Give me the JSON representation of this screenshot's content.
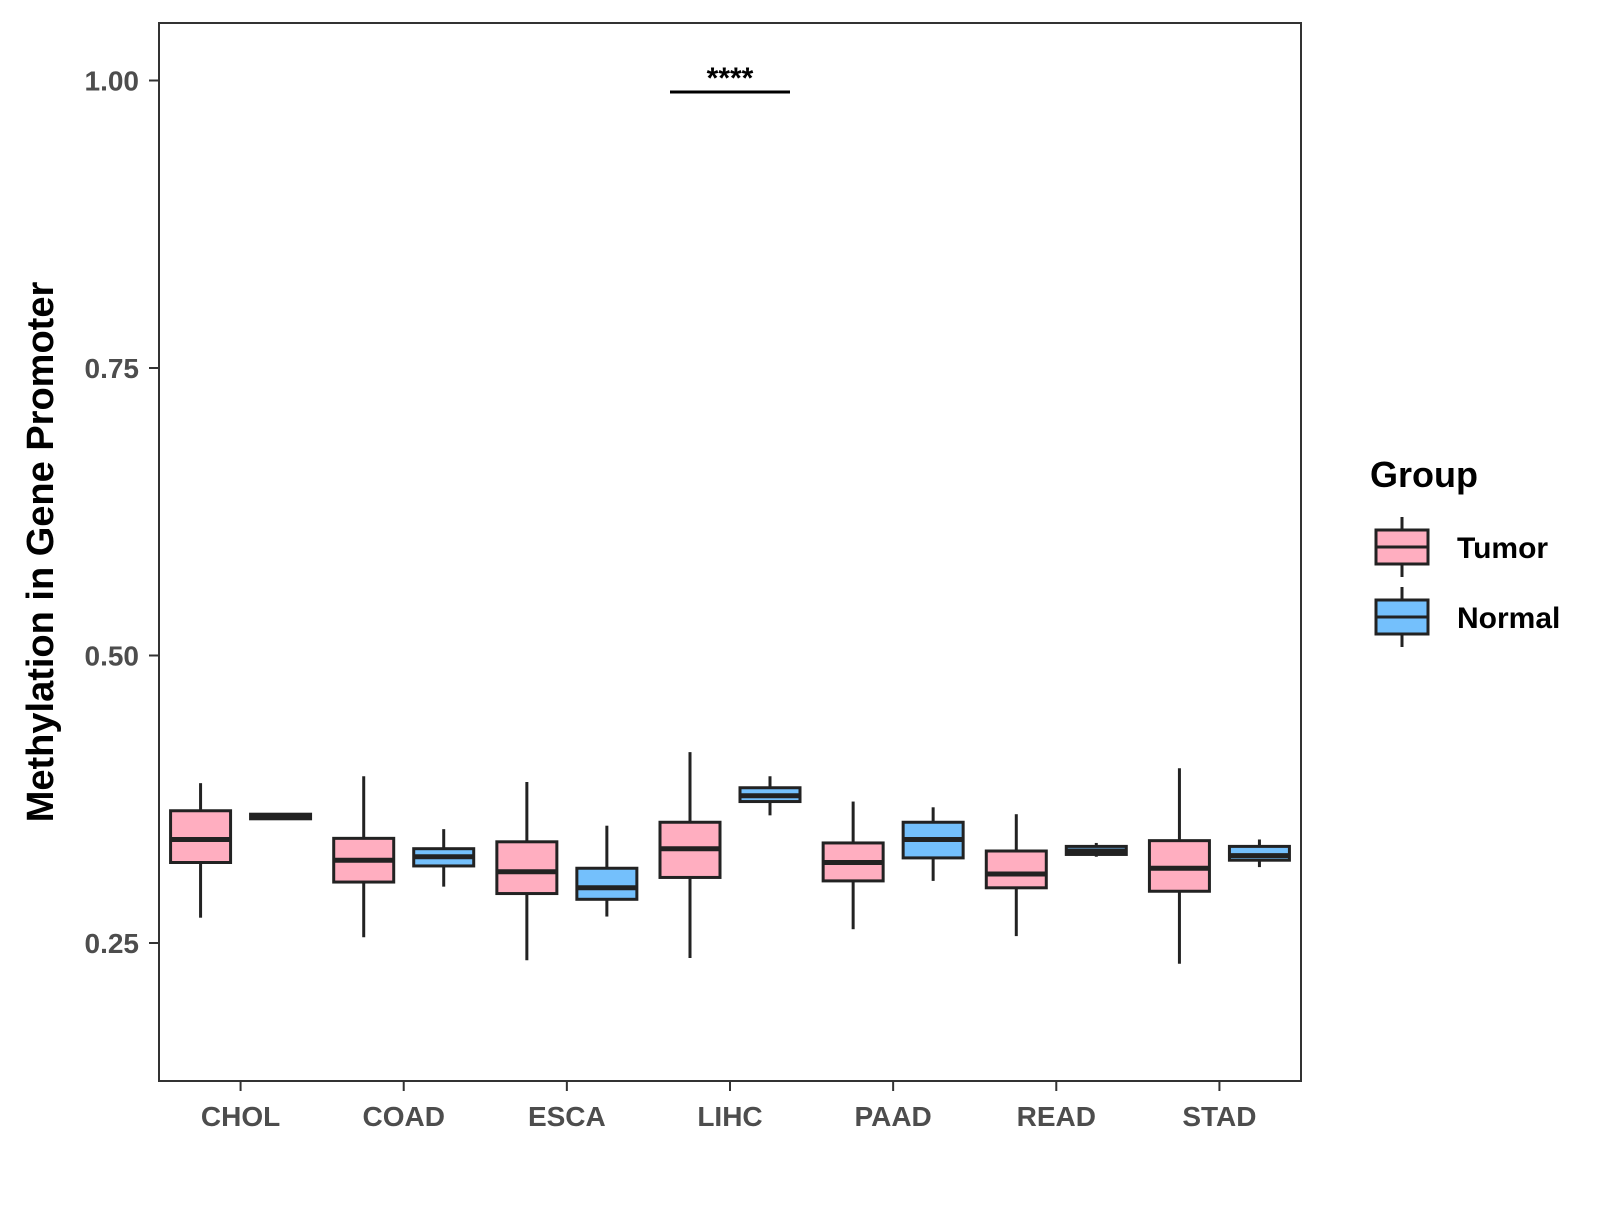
{
  "chart_data": {
    "type": "boxplot",
    "title": "",
    "xlabel": "",
    "ylabel": "Methylation in Gene Promoter",
    "ylim": [
      0.13,
      1.05
    ],
    "yticks": [
      0.25,
      0.5,
      0.75,
      1.0
    ],
    "ytick_labels": [
      "0.25",
      "0.50",
      "0.75",
      "1.00"
    ],
    "categories": [
      "CHOL",
      "COAD",
      "ESCA",
      "LIHC",
      "PAAD",
      "READ",
      "STAD"
    ],
    "legend": {
      "title": "Group",
      "position": "right"
    },
    "series": [
      {
        "name": "Tumor",
        "color": "#ffaec0",
        "boxes": [
          {
            "category": "CHOL",
            "whisker_low": 0.272,
            "q1": 0.32,
            "median": 0.34,
            "q3": 0.365,
            "whisker_high": 0.389
          },
          {
            "category": "COAD",
            "whisker_low": 0.255,
            "q1": 0.303,
            "median": 0.322,
            "q3": 0.341,
            "whisker_high": 0.395
          },
          {
            "category": "ESCA",
            "whisker_low": 0.235,
            "q1": 0.293,
            "median": 0.312,
            "q3": 0.338,
            "whisker_high": 0.39
          },
          {
            "category": "LIHC",
            "whisker_low": 0.237,
            "q1": 0.307,
            "median": 0.332,
            "q3": 0.355,
            "whisker_high": 0.416
          },
          {
            "category": "PAAD",
            "whisker_low": 0.262,
            "q1": 0.304,
            "median": 0.32,
            "q3": 0.337,
            "whisker_high": 0.373
          },
          {
            "category": "READ",
            "whisker_low": 0.256,
            "q1": 0.298,
            "median": 0.31,
            "q3": 0.33,
            "whisker_high": 0.362
          },
          {
            "category": "STAD",
            "whisker_low": 0.232,
            "q1": 0.295,
            "median": 0.315,
            "q3": 0.339,
            "whisker_high": 0.402
          }
        ]
      },
      {
        "name": "Normal",
        "color": "#74c0fc",
        "boxes": [
          {
            "category": "CHOL",
            "whisker_low": 0.358,
            "q1": 0.358,
            "median": 0.36,
            "q3": 0.362,
            "whisker_high": 0.362
          },
          {
            "category": "COAD",
            "whisker_low": 0.299,
            "q1": 0.317,
            "median": 0.325,
            "q3": 0.332,
            "whisker_high": 0.349
          },
          {
            "category": "ESCA",
            "whisker_low": 0.273,
            "q1": 0.288,
            "median": 0.298,
            "q3": 0.315,
            "whisker_high": 0.352
          },
          {
            "category": "LIHC",
            "whisker_low": 0.361,
            "q1": 0.373,
            "median": 0.378,
            "q3": 0.385,
            "whisker_high": 0.395
          },
          {
            "category": "PAAD",
            "whisker_low": 0.304,
            "q1": 0.324,
            "median": 0.34,
            "q3": 0.355,
            "whisker_high": 0.368
          },
          {
            "category": "READ",
            "whisker_low": 0.325,
            "q1": 0.327,
            "median": 0.33,
            "q3": 0.334,
            "whisker_high": 0.337
          },
          {
            "category": "STAD",
            "whisker_low": 0.316,
            "q1": 0.322,
            "median": 0.326,
            "q3": 0.334,
            "whisker_high": 0.34
          }
        ]
      }
    ],
    "annotations": [
      {
        "category": "LIHC",
        "text": "****",
        "y": 0.99
      }
    ]
  }
}
